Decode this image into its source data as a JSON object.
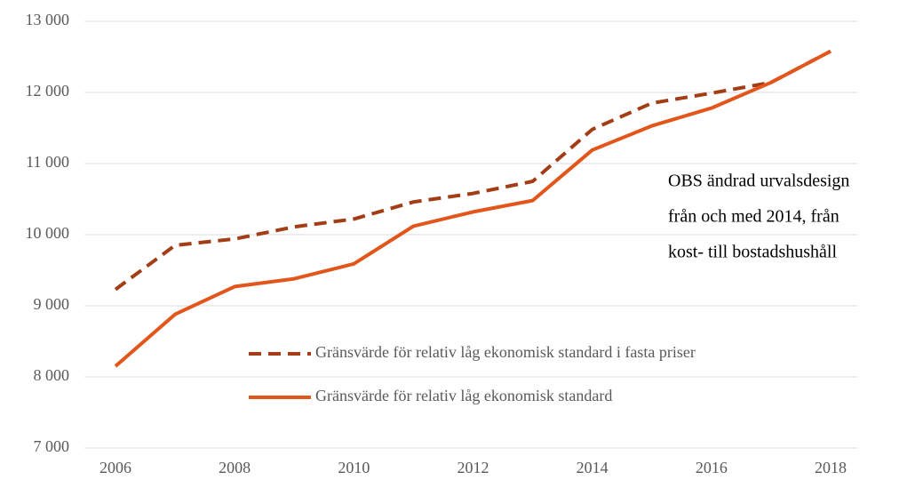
{
  "chart_data": {
    "type": "line",
    "categories": [
      "2006",
      null,
      "2008",
      null,
      "2010",
      null,
      "2012",
      null,
      "2014",
      null,
      "2016",
      null,
      "2018"
    ],
    "series": [
      {
        "name": "Gränsvärde för relativ låg ekonomisk standard  i fasta priser",
        "color": "#a33d15",
        "dashed": true,
        "values": [
          9230,
          9850,
          9940,
          10110,
          10220,
          10460,
          10580,
          10750,
          11480,
          11850,
          11990,
          12140,
          12580
        ]
      },
      {
        "name": "Gränsvärde för relativ låg ekonomisk standard",
        "color": "#e2561c",
        "dashed": false,
        "values": [
          8150,
          8880,
          9270,
          9380,
          9590,
          10120,
          10320,
          10480,
          11190,
          11530,
          11780,
          12140,
          12580
        ]
      }
    ],
    "ylim": [
      7000,
      13000
    ],
    "yticks": [
      {
        "value": 7000,
        "label": "7 000"
      },
      {
        "value": 8000,
        "label": "8 000"
      },
      {
        "value": 9000,
        "label": "9 000"
      },
      {
        "value": 10000,
        "label": "10 000"
      },
      {
        "value": 11000,
        "label": "11 000"
      },
      {
        "value": 12000,
        "label": "12 000"
      },
      {
        "value": 13000,
        "label": "13 000"
      }
    ],
    "grid": true,
    "annotation": [
      "OBS ändrad urvalsdesign",
      "från och med 2014, från",
      "kost- till bostadshushåll"
    ]
  }
}
